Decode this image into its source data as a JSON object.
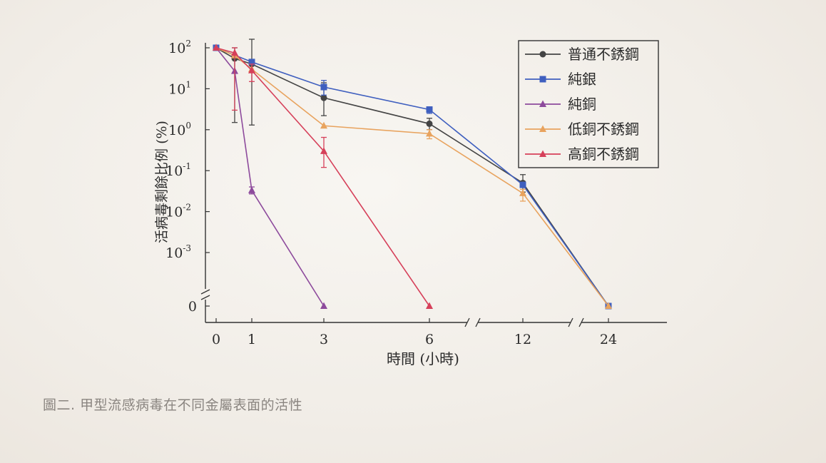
{
  "caption": "圖二. 甲型流感病毒在不同金屬表面的活性",
  "chart_data": {
    "type": "line",
    "ylabel": "活病毒剩餘比例 (%)",
    "xlabel": "時間 (小時)",
    "yscale": "log",
    "y_ticks": [
      {
        "base": "10",
        "exp": "2",
        "value": 100
      },
      {
        "base": "10",
        "exp": "1",
        "value": 10
      },
      {
        "base": "10",
        "exp": "0",
        "value": 1
      },
      {
        "base": "10",
        "exp": "-1",
        "value": 0.1
      },
      {
        "base": "10",
        "exp": "-2",
        "value": 0.01
      },
      {
        "base": "10",
        "exp": "-3",
        "value": 0.001
      },
      {
        "base": "0",
        "exp": "",
        "value": 0
      }
    ],
    "x_ticks": [
      "0",
      "1",
      "3",
      "6",
      "12",
      "24"
    ],
    "x_values": [
      0,
      0.5,
      1,
      3,
      6,
      12,
      24
    ],
    "axis_breaks": {
      "x": [
        "between 6 and 12",
        "between 12 and 24"
      ],
      "y": "between 10^-3 and 0"
    },
    "legend_position": "top-right",
    "series": [
      {
        "name": "普通不銹鋼",
        "color": "#444444",
        "marker": "circle",
        "points": [
          {
            "x": 0,
            "y": 100
          },
          {
            "x": 0.5,
            "y": 55,
            "err": [
              1.5,
              100
            ]
          },
          {
            "x": 1,
            "y": 40,
            "err": [
              1.3,
              200
            ]
          },
          {
            "x": 3,
            "y": 6,
            "err": [
              2.2,
              14
            ]
          },
          {
            "x": 6,
            "y": 1.4,
            "err": [
              1.0,
              1.9
            ]
          },
          {
            "x": 12,
            "y": 0.05,
            "err": [
              0.03,
              0.08
            ]
          },
          {
            "x": 24,
            "y": 0
          }
        ]
      },
      {
        "name": "純銀",
        "color": "#3f5fbf",
        "marker": "square",
        "points": [
          {
            "x": 0,
            "y": 100
          },
          {
            "x": 1,
            "y": 45
          },
          {
            "x": 3,
            "y": 11,
            "err": [
              7,
              16
            ]
          },
          {
            "x": 6,
            "y": 3.1,
            "err": [
              2.5,
              3.6
            ]
          },
          {
            "x": 12,
            "y": 0.045
          },
          {
            "x": 24,
            "y": 0
          }
        ]
      },
      {
        "name": "純銅",
        "color": "#8d4a9c",
        "marker": "triangle",
        "points": [
          {
            "x": 0,
            "y": 100
          },
          {
            "x": 0.5,
            "y": 27
          },
          {
            "x": 1,
            "y": 0.033,
            "err": [
              0.027,
              0.04
            ]
          },
          {
            "x": 3,
            "y": 0
          }
        ]
      },
      {
        "name": "低銅不銹鋼",
        "color": "#e8a35e",
        "marker": "triangle",
        "points": [
          {
            "x": 0,
            "y": 100
          },
          {
            "x": 0.5,
            "y": 65
          },
          {
            "x": 1,
            "y": 30
          },
          {
            "x": 3,
            "y": 1.25
          },
          {
            "x": 6,
            "y": 0.8,
            "err": [
              0.6,
              1.0
            ]
          },
          {
            "x": 12,
            "y": 0.028,
            "err": [
              0.018,
              0.035
            ]
          },
          {
            "x": 24,
            "y": 0
          }
        ]
      },
      {
        "name": "高銅不銹鋼",
        "color": "#d6405a",
        "marker": "triangle",
        "points": [
          {
            "x": 0,
            "y": 100
          },
          {
            "x": 0.5,
            "y": 75,
            "err": [
              3,
              100
            ]
          },
          {
            "x": 1,
            "y": 28,
            "err": [
              15,
              40
            ]
          },
          {
            "x": 3,
            "y": 0.3,
            "err": [
              0.12,
              0.65
            ]
          },
          {
            "x": 6,
            "y": 0
          }
        ]
      }
    ]
  }
}
